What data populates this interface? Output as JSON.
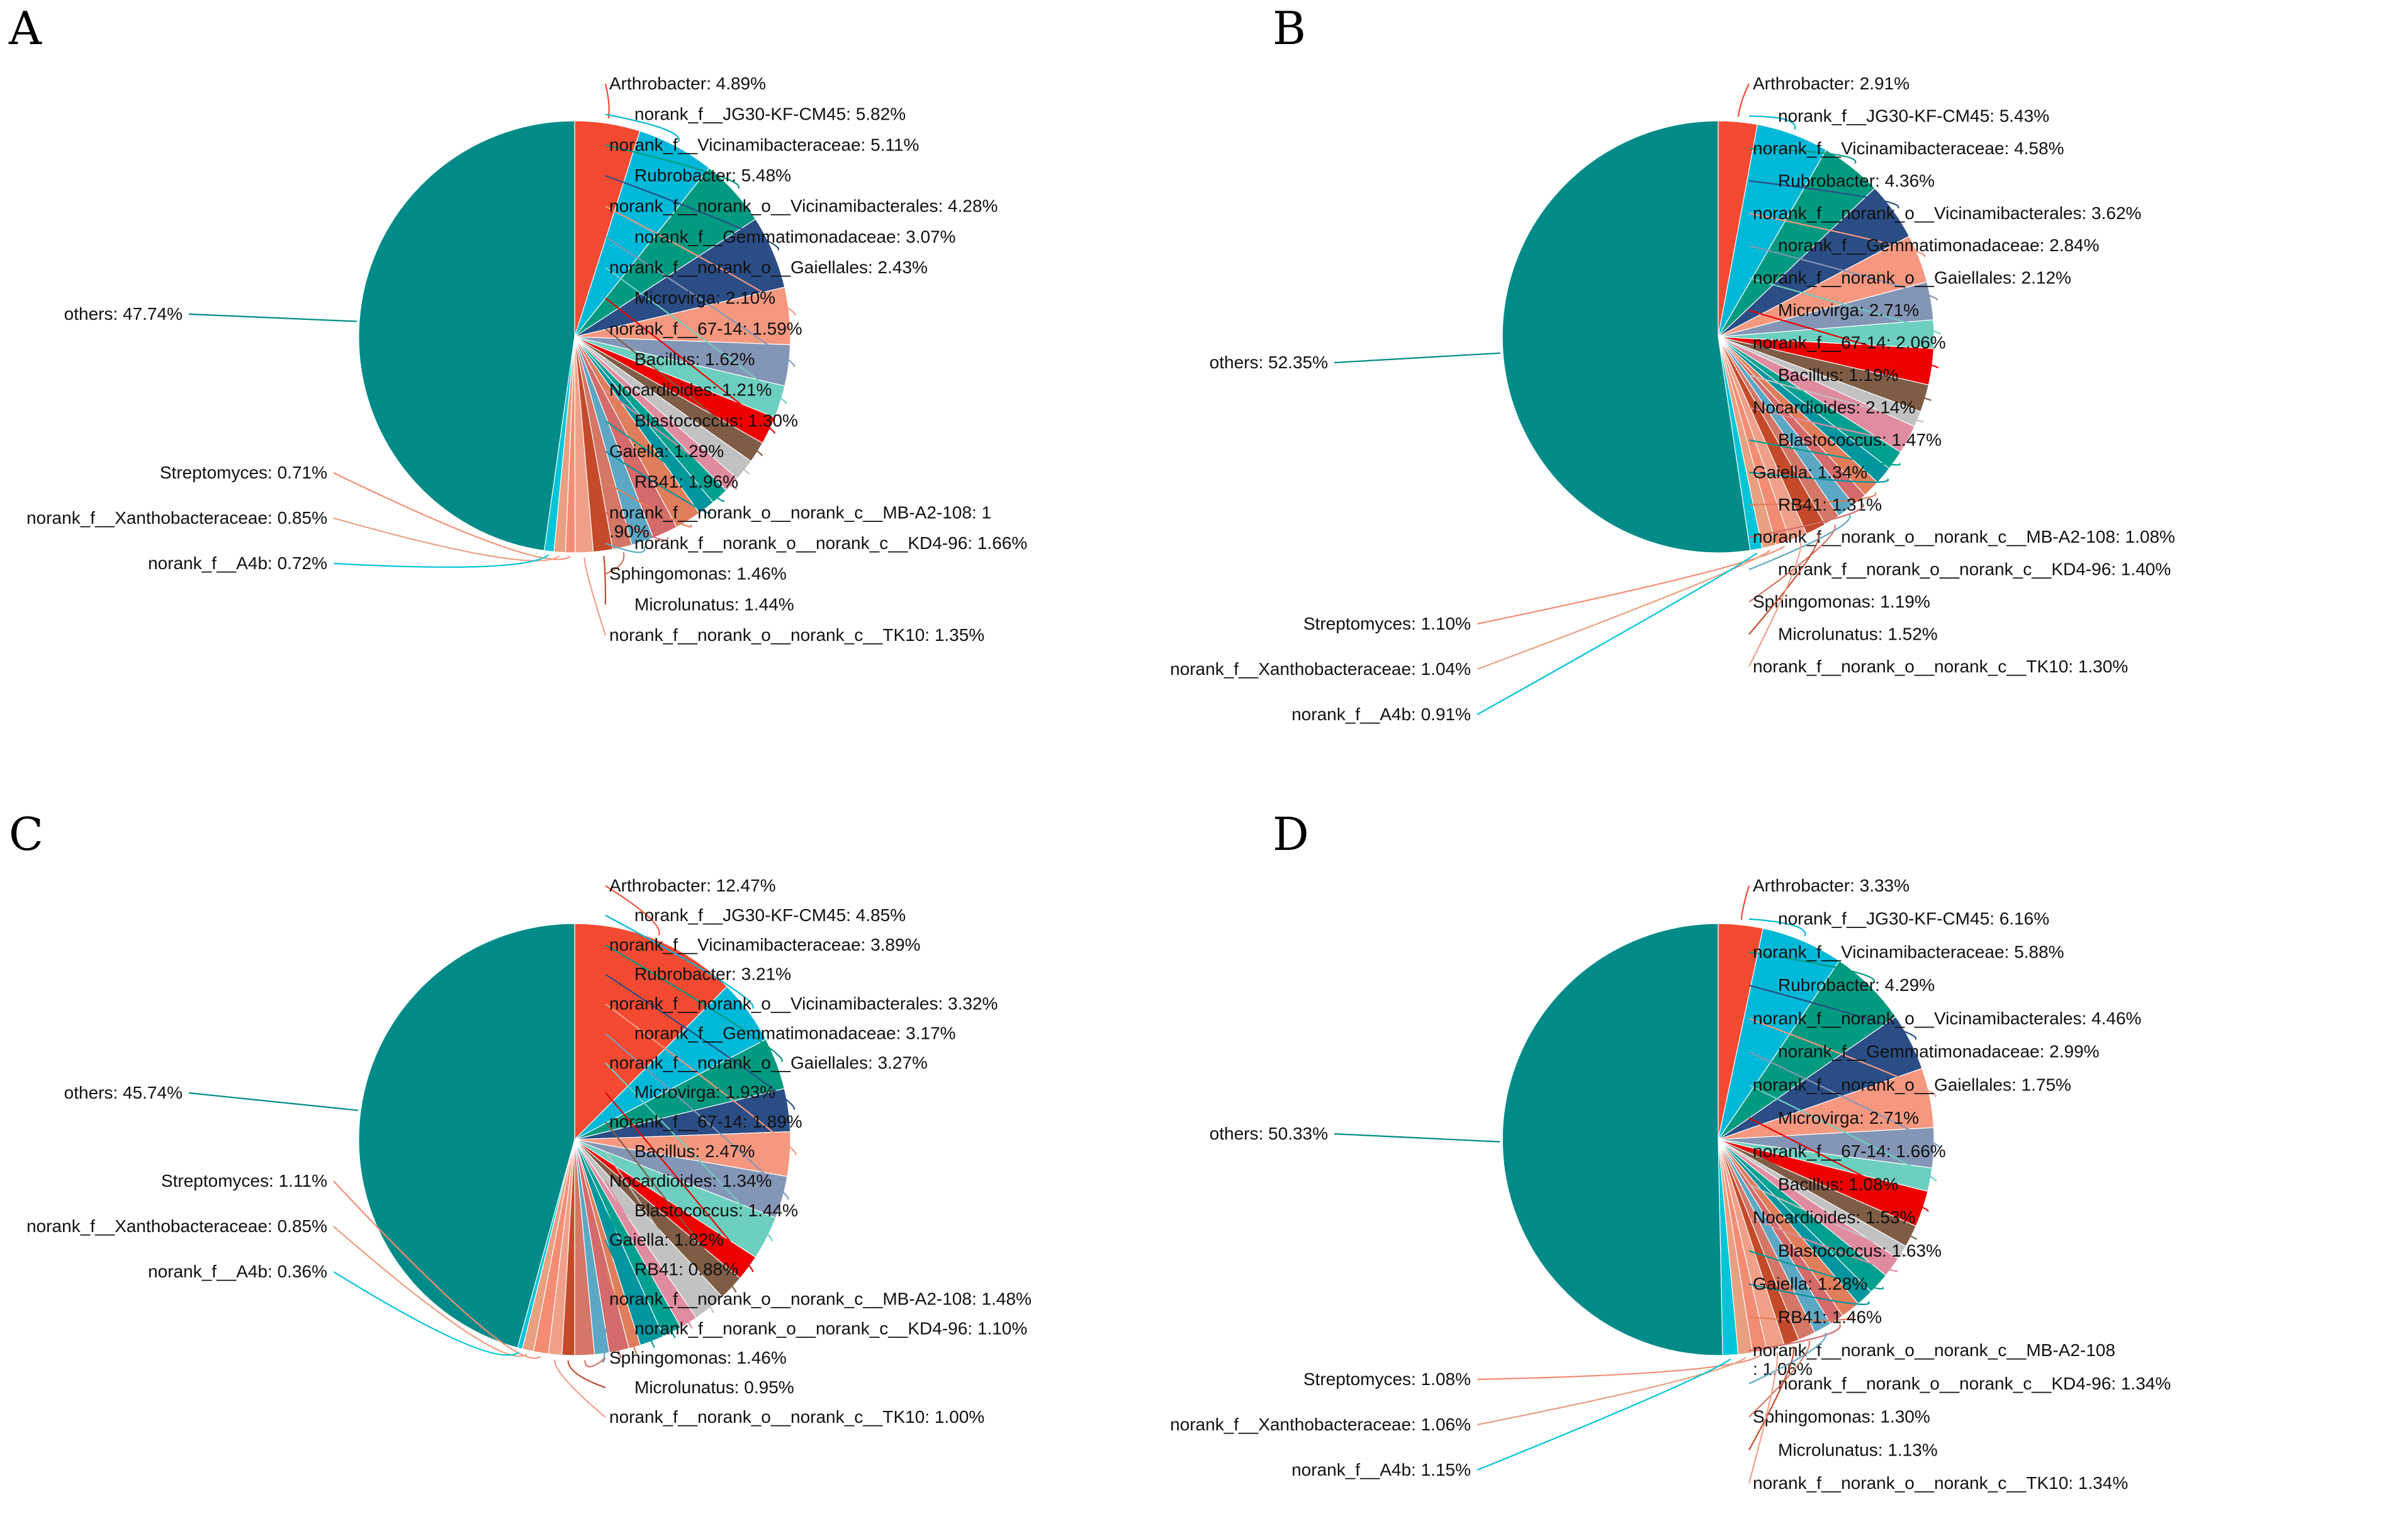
{
  "chart_data": [
    {
      "type": "pie",
      "panel": "A",
      "slices": [
        {
          "name": "Arthrobacter",
          "value": 4.89,
          "label": "Arthrobacter: 4.89%"
        },
        {
          "name": "norank_f__JG30-KF-CM45",
          "value": 5.82,
          "label": "norank_f__JG30-KF-CM45: 5.82%"
        },
        {
          "name": "norank_f__Vicinamibacteraceae",
          "value": 5.11,
          "label": "norank_f__Vicinamibacteraceae: 5.11%"
        },
        {
          "name": "Rubrobacter",
          "value": 5.48,
          "label": "Rubrobacter: 5.48%"
        },
        {
          "name": "norank_f__norank_o__Vicinamibacterales",
          "value": 4.28,
          "label": "norank_f__norank_o__Vicinamibacterales: 4.28%"
        },
        {
          "name": "norank_f__Gemmatimonadaceae",
          "value": 3.07,
          "label": "norank_f__Gemmatimonadaceae: 3.07%"
        },
        {
          "name": "norank_f__norank_o__Gaiellales",
          "value": 2.43,
          "label": "norank_f__norank_o__Gaiellales: 2.43%"
        },
        {
          "name": "Microvirga",
          "value": 2.1,
          "label": "Microvirga: 2.10%"
        },
        {
          "name": "norank_f__67-14",
          "value": 1.59,
          "label": "norank_f__67-14: 1.59%"
        },
        {
          "name": "Bacillus",
          "value": 1.62,
          "label": "Bacillus: 1.62%"
        },
        {
          "name": "Nocardioides",
          "value": 1.21,
          "label": "Nocardioides: 1.21%"
        },
        {
          "name": "Blastococcus",
          "value": 1.3,
          "label": "Blastococcus: 1.30%"
        },
        {
          "name": "Gaiella",
          "value": 1.29,
          "label": "Gaiella: 1.29%"
        },
        {
          "name": "RB41",
          "value": 1.96,
          "label": "RB41: 1.96%"
        },
        {
          "name": "norank_f__norank_o__norank_c__MB-A2-108",
          "value": 1.9,
          "label": "norank_f__norank_o__norank_c__MB-A2-108: 1",
          "label2": ".90%"
        },
        {
          "name": "norank_f__norank_o__norank_c__KD4-96",
          "value": 1.66,
          "label": "norank_f__norank_o__norank_c__KD4-96: 1.66%"
        },
        {
          "name": "Sphingomonas",
          "value": 1.46,
          "label": "Sphingomonas: 1.46%"
        },
        {
          "name": "Microlunatus",
          "value": 1.44,
          "label": "Microlunatus: 1.44%"
        },
        {
          "name": "norank_f__norank_o__norank_c__TK10",
          "value": 1.35,
          "label": "norank_f__norank_o__norank_c__TK10: 1.35%"
        },
        {
          "name": "Streptomyces",
          "value": 0.71,
          "label": "Streptomyces: 0.71%"
        },
        {
          "name": "norank_f__Xanthobacteraceae",
          "value": 0.85,
          "label": "norank_f__Xanthobacteraceae: 0.85%"
        },
        {
          "name": "norank_f__A4b",
          "value": 0.72,
          "label": "norank_f__A4b: 0.72%"
        },
        {
          "name": "others",
          "value": 47.74,
          "label": "others: 47.74%"
        }
      ]
    },
    {
      "type": "pie",
      "panel": "B",
      "slices": [
        {
          "name": "Arthrobacter",
          "value": 2.91,
          "label": "Arthrobacter: 2.91%"
        },
        {
          "name": "norank_f__JG30-KF-CM45",
          "value": 5.43,
          "label": "norank_f__JG30-KF-CM45: 5.43%"
        },
        {
          "name": "norank_f__Vicinamibacteraceae",
          "value": 4.58,
          "label": "norank_f__Vicinamibacteraceae: 4.58%"
        },
        {
          "name": "Rubrobacter",
          "value": 4.36,
          "label": "Rubrobacter: 4.36%"
        },
        {
          "name": "norank_f__norank_o__Vicinamibacterales",
          "value": 3.62,
          "label": "norank_f__norank_o__Vicinamibacterales: 3.62%"
        },
        {
          "name": "norank_f__Gemmatimonadaceae",
          "value": 2.84,
          "label": "norank_f__Gemmatimonadaceae: 2.84%"
        },
        {
          "name": "norank_f__norank_o__Gaiellales",
          "value": 2.12,
          "label": "norank_f__norank_o__Gaiellales: 2.12%"
        },
        {
          "name": "Microvirga",
          "value": 2.71,
          "label": "Microvirga: 2.71%"
        },
        {
          "name": "norank_f__67-14",
          "value": 2.06,
          "label": "norank_f__67-14: 2.06%"
        },
        {
          "name": "Bacillus",
          "value": 1.19,
          "label": "Bacillus: 1.19%"
        },
        {
          "name": "Nocardioides",
          "value": 2.14,
          "label": "Nocardioides: 2.14%"
        },
        {
          "name": "Blastococcus",
          "value": 1.47,
          "label": "Blastococcus: 1.47%"
        },
        {
          "name": "Gaiella",
          "value": 1.34,
          "label": "Gaiella: 1.34%"
        },
        {
          "name": "RB41",
          "value": 1.31,
          "label": "RB41: 1.31%"
        },
        {
          "name": "norank_f__norank_o__norank_c__MB-A2-108",
          "value": 1.08,
          "label": "norank_f__norank_o__norank_c__MB-A2-108: 1.08%"
        },
        {
          "name": "norank_f__norank_o__norank_c__KD4-96",
          "value": 1.4,
          "label": "norank_f__norank_o__norank_c__KD4-96: 1.40%"
        },
        {
          "name": "Sphingomonas",
          "value": 1.19,
          "label": "Sphingomonas: 1.19%"
        },
        {
          "name": "Microlunatus",
          "value": 1.52,
          "label": "Microlunatus: 1.52%"
        },
        {
          "name": "norank_f__norank_o__norank_c__TK10",
          "value": 1.3,
          "label": "norank_f__norank_o__norank_c__TK10: 1.30%"
        },
        {
          "name": "Streptomyces",
          "value": 1.1,
          "label": "Streptomyces: 1.10%"
        },
        {
          "name": "norank_f__Xanthobacteraceae",
          "value": 1.04,
          "label": "norank_f__Xanthobacteraceae: 1.04%"
        },
        {
          "name": "norank_f__A4b",
          "value": 0.91,
          "label": "norank_f__A4b: 0.91%"
        },
        {
          "name": "others",
          "value": 52.35,
          "label": "others: 52.35%"
        }
      ]
    },
    {
      "type": "pie",
      "panel": "C",
      "slices": [
        {
          "name": "Arthrobacter",
          "value": 12.47,
          "label": "Arthrobacter: 12.47%"
        },
        {
          "name": "norank_f__JG30-KF-CM45",
          "value": 4.85,
          "label": "norank_f__JG30-KF-CM45: 4.85%"
        },
        {
          "name": "norank_f__Vicinamibacteraceae",
          "value": 3.89,
          "label": "norank_f__Vicinamibacteraceae: 3.89%"
        },
        {
          "name": "Rubrobacter",
          "value": 3.21,
          "label": "Rubrobacter: 3.21%"
        },
        {
          "name": "norank_f__norank_o__Vicinamibacterales",
          "value": 3.32,
          "label": "norank_f__norank_o__Vicinamibacterales: 3.32%"
        },
        {
          "name": "norank_f__Gemmatimonadaceae",
          "value": 3.17,
          "label": "norank_f__Gemmatimonadaceae: 3.17%"
        },
        {
          "name": "norank_f__norank_o__Gaiellales",
          "value": 3.27,
          "label": "norank_f__norank_o__Gaiellales: 3.27%"
        },
        {
          "name": "Microvirga",
          "value": 1.93,
          "label": "Microvirga: 1.93%"
        },
        {
          "name": "norank_f__67-14",
          "value": 1.89,
          "label": "norank_f__67-14: 1.89%"
        },
        {
          "name": "Bacillus",
          "value": 2.47,
          "label": "Bacillus: 2.47%"
        },
        {
          "name": "Nocardioides",
          "value": 1.34,
          "label": "Nocardioides: 1.34%"
        },
        {
          "name": "Blastococcus",
          "value": 1.44,
          "label": "Blastococcus: 1.44%"
        },
        {
          "name": "Gaiella",
          "value": 1.82,
          "label": "Gaiella: 1.82%"
        },
        {
          "name": "RB41",
          "value": 0.88,
          "label": "RB41: 0.88%"
        },
        {
          "name": "norank_f__norank_o__norank_c__MB-A2-108",
          "value": 1.48,
          "label": "norank_f__norank_o__norank_c__MB-A2-108: 1.48%"
        },
        {
          "name": "norank_f__norank_o__norank_c__KD4-96",
          "value": 1.1,
          "label": "norank_f__norank_o__norank_c__KD4-96: 1.10%"
        },
        {
          "name": "Sphingomonas",
          "value": 1.46,
          "label": "Sphingomonas: 1.46%"
        },
        {
          "name": "Microlunatus",
          "value": 0.95,
          "label": "Microlunatus: 0.95%"
        },
        {
          "name": "norank_f__norank_o__norank_c__TK10",
          "value": 1.0,
          "label": "norank_f__norank_o__norank_c__TK10: 1.00%"
        },
        {
          "name": "Streptomyces",
          "value": 1.11,
          "label": "Streptomyces: 1.11%"
        },
        {
          "name": "norank_f__Xanthobacteraceae",
          "value": 0.85,
          "label": "norank_f__Xanthobacteraceae: 0.85%"
        },
        {
          "name": "norank_f__A4b",
          "value": 0.36,
          "label": "norank_f__A4b: 0.36%"
        },
        {
          "name": "others",
          "value": 45.74,
          "label": "others: 45.74%"
        }
      ]
    },
    {
      "type": "pie",
      "panel": "D",
      "slices": [
        {
          "name": "Arthrobacter",
          "value": 3.33,
          "label": "Arthrobacter: 3.33%"
        },
        {
          "name": "norank_f__JG30-KF-CM45",
          "value": 6.16,
          "label": "norank_f__JG30-KF-CM45: 6.16%"
        },
        {
          "name": "norank_f__Vicinamibacteraceae",
          "value": 5.88,
          "label": "norank_f__Vicinamibacteraceae: 5.88%"
        },
        {
          "name": "Rubrobacter",
          "value": 4.29,
          "label": "Rubrobacter: 4.29%"
        },
        {
          "name": "norank_f__norank_o__Vicinamibacterales",
          "value": 4.46,
          "label": "norank_f__norank_o__Vicinamibacterales: 4.46%"
        },
        {
          "name": "norank_f__Gemmatimonadaceae",
          "value": 2.99,
          "label": "norank_f__Gemmatimonadaceae: 2.99%"
        },
        {
          "name": "norank_f__norank_o__Gaiellales",
          "value": 1.75,
          "label": "norank_f__norank_o__Gaiellales: 1.75%"
        },
        {
          "name": "Microvirga",
          "value": 2.71,
          "label": "Microvirga: 2.71%"
        },
        {
          "name": "norank_f__67-14",
          "value": 1.66,
          "label": "norank_f__67-14: 1.66%"
        },
        {
          "name": "Bacillus",
          "value": 1.08,
          "label": "Bacillus: 1.08%"
        },
        {
          "name": "Nocardioides",
          "value": 1.53,
          "label": "Nocardioides: 1.53%"
        },
        {
          "name": "Blastococcus",
          "value": 1.63,
          "label": "Blastococcus: 1.63%"
        },
        {
          "name": "Gaiella",
          "value": 1.28,
          "label": "Gaiella: 1.28%"
        },
        {
          "name": "RB41",
          "value": 1.46,
          "label": "RB41: 1.46%"
        },
        {
          "name": "norank_f__norank_o__norank_c__MB-A2-108",
          "value": 1.06,
          "label": "norank_f__norank_o__norank_c__MB-A2-108",
          "label2": ": 1.06%"
        },
        {
          "name": "norank_f__norank_o__norank_c__KD4-96",
          "value": 1.34,
          "label": "norank_f__norank_o__norank_c__KD4-96: 1.34%"
        },
        {
          "name": "Sphingomonas",
          "value": 1.3,
          "label": "Sphingomonas: 1.30%"
        },
        {
          "name": "Microlunatus",
          "value": 1.13,
          "label": "Microlunatus: 1.13%"
        },
        {
          "name": "norank_f__norank_o__norank_c__TK10",
          "value": 1.34,
          "label": "norank_f__norank_o__norank_c__TK10: 1.34%"
        },
        {
          "name": "Streptomyces",
          "value": 1.08,
          "label": "Streptomyces: 1.08%"
        },
        {
          "name": "norank_f__Xanthobacteraceae",
          "value": 1.06,
          "label": "norank_f__Xanthobacteraceae: 1.06%"
        },
        {
          "name": "norank_f__A4b",
          "value": 1.15,
          "label": "norank_f__A4b: 1.15%"
        },
        {
          "name": "others",
          "value": 50.33,
          "label": "others: 50.33%"
        }
      ]
    }
  ],
  "palette": [
    "#f44a32",
    "#00b8d8",
    "#009a80",
    "#2a4d85",
    "#f69880",
    "#8496b6",
    "#6ccfbf",
    "#ee0000",
    "#7f5c46",
    "#c2c2c2",
    "#e08ca0",
    "#00a090",
    "#00959f",
    "#e07d5a",
    "#d46a6a",
    "#5ca8c4",
    "#d47766",
    "#c44a2a",
    "#f0a088",
    "#f48c74",
    "#e8a080",
    "#00c4d8",
    "#008b88"
  ]
}
